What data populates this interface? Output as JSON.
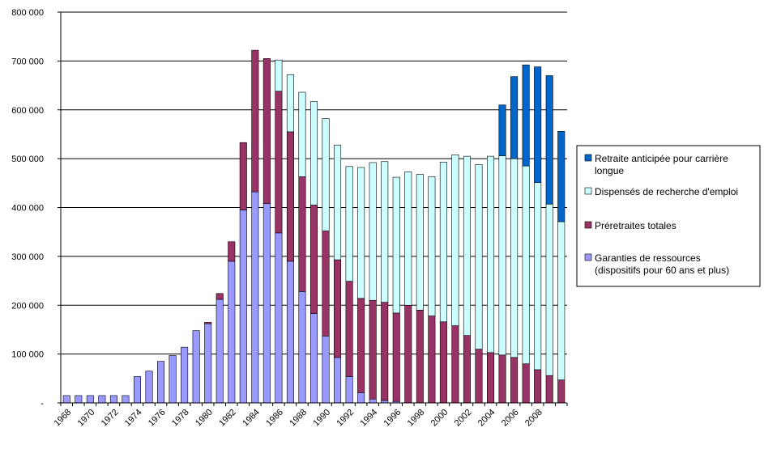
{
  "chart_data": {
    "type": "bar",
    "stacked": true,
    "title": "",
    "xlabel": "",
    "ylabel": "",
    "ylim": [
      0,
      800000
    ],
    "y_ticks": [
      "-",
      "100 000",
      "200 000",
      "300 000",
      "400 000",
      "500 000",
      "600 000",
      "700 000",
      "800 000"
    ],
    "grid": "horizontal",
    "legend_position": "right",
    "categories": [
      "1968",
      "1969",
      "1970",
      "1971",
      "1972",
      "1973",
      "1974",
      "1975",
      "1976",
      "1977",
      "1978",
      "1979",
      "1980",
      "1981",
      "1982",
      "1983",
      "1984",
      "1985",
      "1986",
      "1987",
      "1988",
      "1989",
      "1990",
      "1991",
      "1992",
      "1993",
      "1994",
      "1995",
      "1996",
      "1997",
      "1998",
      "1999",
      "2000",
      "2001",
      "2002",
      "2003",
      "2004",
      "2005",
      "2006",
      "2007",
      "2008",
      "2009",
      "2010"
    ],
    "x_tick_labels": [
      "1968",
      "1970",
      "1972",
      "1974",
      "1976",
      "1978",
      "1980",
      "1982",
      "1984",
      "1986",
      "1988",
      "1990",
      "1992",
      "1994",
      "1996",
      "1998",
      "2000",
      "2002",
      "2004",
      "2006",
      "2008"
    ],
    "series": [
      {
        "name": "Garanties de ressources (dispositifs pour 60 ans et plus)",
        "legend_lines": [
          "Garanties de ressources",
          "(dispositifs pour 60 ans et plus)"
        ],
        "color": "#9999ff",
        "values": [
          15000,
          15000,
          15000,
          15000,
          15000,
          15000,
          54000,
          65000,
          85000,
          97000,
          114000,
          148000,
          162000,
          212000,
          290000,
          395000,
          432000,
          408000,
          348000,
          290000,
          228000,
          183000,
          137000,
          93000,
          54000,
          21000,
          8000,
          5000,
          3000,
          0,
          0,
          0,
          0,
          0,
          0,
          0,
          0,
          0,
          0,
          0,
          0,
          0,
          0
        ]
      },
      {
        "name": "Préretraites totales",
        "legend_lines": [
          "Préretraites totales"
        ],
        "color": "#993366",
        "values": [
          0,
          0,
          0,
          0,
          0,
          0,
          0,
          0,
          0,
          0,
          0,
          0,
          3000,
          12000,
          40000,
          138000,
          290000,
          297000,
          290000,
          265000,
          235000,
          222000,
          215000,
          200000,
          195000,
          193000,
          202000,
          201000,
          181000,
          200000,
          190000,
          178000,
          166000,
          158000,
          138000,
          110000,
          103000,
          98000,
          93000,
          80000,
          68000,
          56000,
          47000
        ]
      },
      {
        "name": "Dispensés de recherche d'emploi",
        "legend_lines": [
          "Dispensés de recherche d'emploi"
        ],
        "color": "#ccffff",
        "values": [
          0,
          0,
          0,
          0,
          0,
          0,
          0,
          0,
          0,
          0,
          0,
          0,
          0,
          0,
          0,
          0,
          0,
          0,
          64000,
          117000,
          173000,
          212000,
          230000,
          235000,
          235000,
          268000,
          282000,
          288000,
          278000,
          273000,
          278000,
          285000,
          327000,
          350000,
          367000,
          378000,
          402000,
          408000,
          407000,
          405000,
          383000,
          351000,
          324000
        ]
      },
      {
        "name": "Retraite anticipée pour carrière longue",
        "legend_lines": [
          "Retraite anticipée pour carrière",
          "longue"
        ],
        "color": "#0066cc",
        "values": [
          0,
          0,
          0,
          0,
          0,
          0,
          0,
          0,
          0,
          0,
          0,
          0,
          0,
          0,
          0,
          0,
          0,
          0,
          0,
          0,
          0,
          0,
          0,
          0,
          0,
          0,
          0,
          0,
          0,
          0,
          0,
          0,
          0,
          0,
          0,
          0,
          0,
          104000,
          168000,
          207000,
          237000,
          263000,
          185000
        ]
      }
    ],
    "legend_order": [
      3,
      2,
      1,
      0
    ]
  }
}
